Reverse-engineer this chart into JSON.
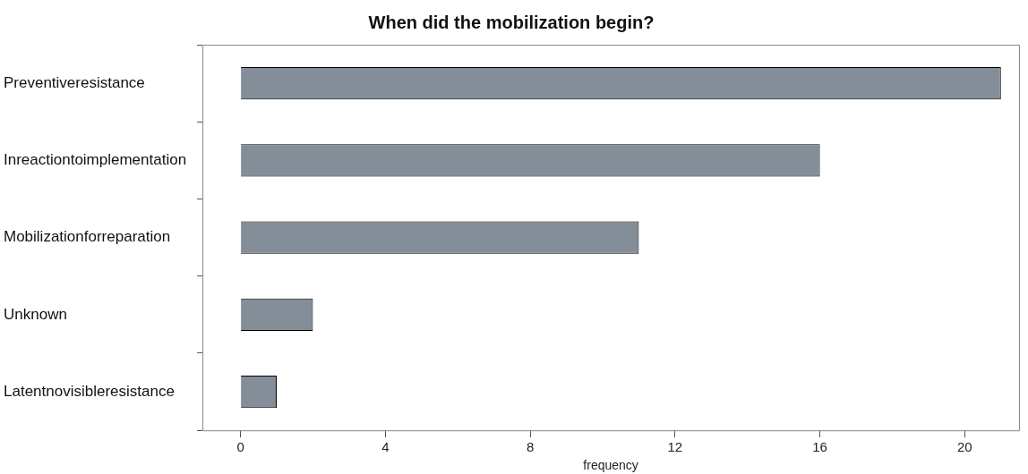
{
  "chart_data": {
    "type": "bar",
    "orientation": "horizontal",
    "title": "When did the mobilization begin?",
    "xlabel": "frequency",
    "categories": [
      "Preventiveresistance",
      "Inreactiontoimplementation",
      "Mobilizationforreparation",
      "Unknown",
      "Latentnovisibleresistance"
    ],
    "values": [
      21,
      16,
      11,
      2,
      1
    ],
    "color": "#848e98",
    "xlim": [
      -1.05,
      21.5
    ],
    "xticks": [
      0,
      4,
      8,
      12,
      16,
      20
    ],
    "grid": false,
    "legend": false
  }
}
